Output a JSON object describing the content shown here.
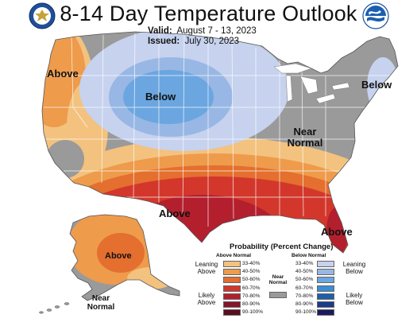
{
  "title": "8-14 Day Temperature Outlook",
  "valid_label": "Valid:",
  "valid_dates": "August 7 - 13, 2023",
  "issued_label": "Issued:",
  "issued_date": "July 30, 2023",
  "map_labels": {
    "above_west": "Above",
    "below_north": "Below",
    "below_northeast": "Below",
    "near_normal_east_1": "Near",
    "near_normal_east_2": "Normal",
    "above_south": "Above",
    "above_florida": "Above",
    "above_alaska": "Above",
    "near_normal_alaska_1": "Near",
    "near_normal_alaska_2": "Normal"
  },
  "legend": {
    "title": "Probability (Percent Change)",
    "above_header": "Above Normal",
    "below_header": "Below Normal",
    "near_label_1": "Near",
    "near_label_2": "Normal",
    "leaning_above_1": "Leaning",
    "leaning_above_2": "Above",
    "likely_above_1": "Likely",
    "likely_above_2": "Above",
    "leaning_below_1": "Leaning",
    "leaning_below_2": "Below",
    "likely_below_1": "Likely",
    "likely_below_2": "Below",
    "above_bins": [
      {
        "label": "33-40%",
        "color": "#f3c27e"
      },
      {
        "label": "40-50%",
        "color": "#ee9b4c"
      },
      {
        "label": "50-60%",
        "color": "#e46f2e"
      },
      {
        "label": "60-70%",
        "color": "#d3372c"
      },
      {
        "label": "70-80%",
        "color": "#b41f2e"
      },
      {
        "label": "80-90%",
        "color": "#85152c"
      },
      {
        "label": "90-100%",
        "color": "#5a0e1e"
      }
    ],
    "below_bins": [
      {
        "label": "33-40%",
        "color": "#c6d2ee"
      },
      {
        "label": "40-50%",
        "color": "#98b7e4"
      },
      {
        "label": "50-60%",
        "color": "#6ba6e0"
      },
      {
        "label": "60-70%",
        "color": "#3b8ed6"
      },
      {
        "label": "70-80%",
        "color": "#1f5fa8"
      },
      {
        "label": "80-90%",
        "color": "#1c3b88"
      },
      {
        "label": "90-100%",
        "color": "#1b1a5e"
      }
    ],
    "near_color": "#9a9a9a"
  },
  "colors": {
    "gray": "#9a9a9a",
    "state_lines": "#ffffff"
  },
  "logos": [
    "commerce-seal",
    "noaa-logo"
  ]
}
